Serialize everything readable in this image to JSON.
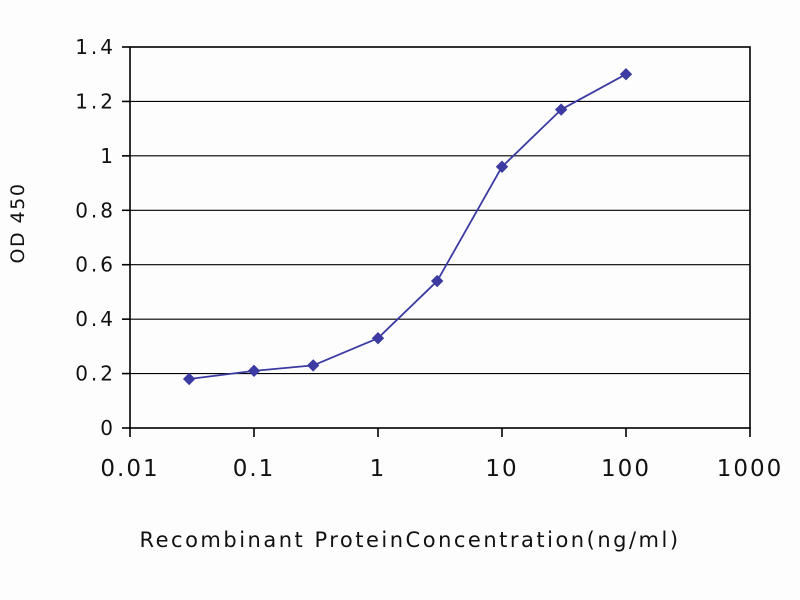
{
  "chart_data": {
    "type": "line",
    "title": "",
    "xlabel": "Recombinant ProteinConcentration(ng/ml)",
    "ylabel": "OD 450",
    "x_scale": "log",
    "xlim": [
      0.01,
      1000
    ],
    "ylim": [
      0,
      1.4
    ],
    "x": [
      0.03,
      0.1,
      0.3,
      1,
      3,
      10,
      30,
      100
    ],
    "y": [
      0.18,
      0.21,
      0.23,
      0.33,
      0.54,
      0.96,
      1.17,
      1.3
    ],
    "x_ticks": [
      "0.01",
      "0.1",
      "1",
      "10",
      "100",
      "1000"
    ],
    "x_tick_values": [
      0.01,
      0.1,
      1,
      10,
      100,
      1000
    ],
    "y_ticks": [
      "0",
      "0.2",
      "0.4",
      "0.6",
      "0.8",
      "1",
      "1.2",
      "1.4"
    ],
    "y_tick_values": [
      0,
      0.2,
      0.4,
      0.6,
      0.8,
      1,
      1.2,
      1.4
    ],
    "grid": "horizontal",
    "legend": "none",
    "marker": "diamond",
    "line_color": "#3b3ba2",
    "grid_color": "#000000",
    "axis_color": "#000000",
    "text_color": "#111111",
    "background_color": "#fdfdfd"
  }
}
